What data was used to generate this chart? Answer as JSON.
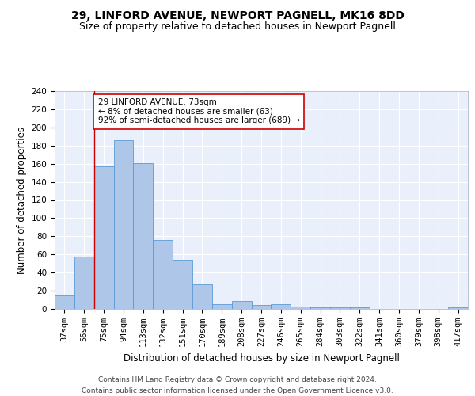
{
  "title1": "29, LINFORD AVENUE, NEWPORT PAGNELL, MK16 8DD",
  "title2": "Size of property relative to detached houses in Newport Pagnell",
  "xlabel": "Distribution of detached houses by size in Newport Pagnell",
  "ylabel": "Number of detached properties",
  "categories": [
    "37sqm",
    "56sqm",
    "75sqm",
    "94sqm",
    "113sqm",
    "132sqm",
    "151sqm",
    "170sqm",
    "189sqm",
    "208sqm",
    "227sqm",
    "246sqm",
    "265sqm",
    "284sqm",
    "303sqm",
    "322sqm",
    "341sqm",
    "360sqm",
    "379sqm",
    "398sqm",
    "417sqm"
  ],
  "values": [
    15,
    58,
    157,
    186,
    161,
    76,
    54,
    27,
    5,
    9,
    4,
    5,
    3,
    2,
    2,
    2,
    0,
    0,
    0,
    0,
    2
  ],
  "bar_color": "#aec6e8",
  "bar_edge_color": "#5b9bd5",
  "background_color": "#eaf0fb",
  "grid_color": "#ffffff",
  "annotation_box_text": "29 LINFORD AVENUE: 73sqm\n← 8% of detached houses are smaller (63)\n92% of semi-detached houses are larger (689) →",
  "annotation_box_color": "#ffffff",
  "annotation_box_edge_color": "#cc0000",
  "vline_x": 1.5,
  "vline_color": "#cc0000",
  "ylim": [
    0,
    240
  ],
  "yticks": [
    0,
    20,
    40,
    60,
    80,
    100,
    120,
    140,
    160,
    180,
    200,
    220,
    240
  ],
  "footer": "Contains HM Land Registry data © Crown copyright and database right 2024.\nContains public sector information licensed under the Open Government Licence v3.0.",
  "title1_fontsize": 10,
  "title2_fontsize": 9,
  "xlabel_fontsize": 8.5,
  "ylabel_fontsize": 8.5,
  "tick_fontsize": 7.5,
  "annotation_fontsize": 7.5,
  "footer_fontsize": 6.5
}
